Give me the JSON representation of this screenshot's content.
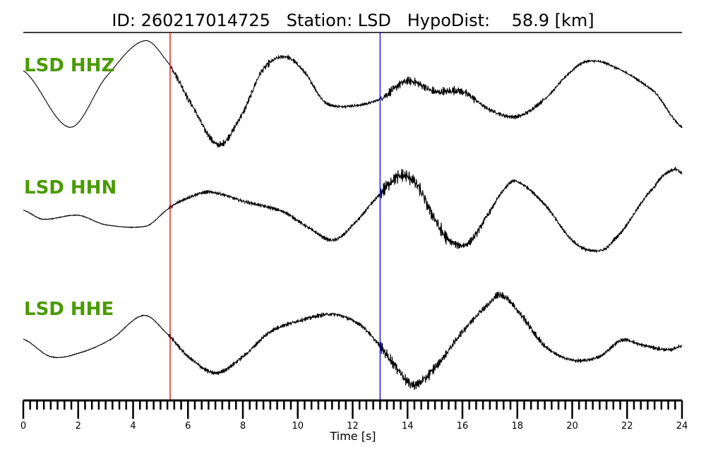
{
  "chart_data": {
    "type": "line",
    "title": "ID: 260217014725   Station: LSD   HypoDist:    58.9 [km]",
    "xlabel": "Time [s]",
    "xlim": [
      0,
      24
    ],
    "xticks": [
      "0",
      "2",
      "4",
      "6",
      "8",
      "10",
      "12",
      "14",
      "16",
      "18",
      "20",
      "22",
      "24"
    ],
    "minor_tick_step": 0.25,
    "grid": false,
    "label_color": "#4a9a00",
    "markers": [
      {
        "time": 5.35,
        "color": "#e00000"
      },
      {
        "time": 13.0,
        "color": "#0000ff"
      }
    ],
    "series": [
      {
        "name": "LSD HHZ",
        "points": [
          [
            0,
            0.46
          ],
          [
            1.7,
            -0.54
          ],
          [
            3,
            0.34
          ],
          [
            4.4,
            0.99
          ],
          [
            5.3,
            0.59
          ],
          [
            6,
            -0.04
          ],
          [
            7.1,
            -0.85
          ],
          [
            8,
            -0.29
          ],
          [
            8.7,
            0.46
          ],
          [
            9.5,
            0.71
          ],
          [
            10.2,
            0.46
          ],
          [
            11,
            -0.1
          ],
          [
            12,
            -0.16
          ],
          [
            13,
            -0.04
          ],
          [
            14,
            0.28
          ],
          [
            15,
            0.09
          ],
          [
            16,
            0.09
          ],
          [
            17,
            -0.23
          ],
          [
            18,
            -0.35
          ],
          [
            19,
            -0.04
          ],
          [
            20,
            0.46
          ],
          [
            20.6,
            0.63
          ],
          [
            21.5,
            0.53
          ],
          [
            23,
            0.09
          ],
          [
            24,
            -0.54
          ]
        ],
        "noise": [
          [
            0,
            5.35,
            0.005
          ],
          [
            5.35,
            9,
            0.09
          ],
          [
            9,
            11,
            0.06
          ],
          [
            11,
            13,
            0.04
          ],
          [
            13,
            16.5,
            0.12
          ],
          [
            16.5,
            19,
            0.06
          ],
          [
            19,
            24,
            0.035
          ]
        ]
      },
      {
        "name": "LSD HHN",
        "points": [
          [
            0,
            0.03
          ],
          [
            0.7,
            -0.13
          ],
          [
            2,
            -0.06
          ],
          [
            3,
            -0.23
          ],
          [
            4.5,
            -0.25
          ],
          [
            5.3,
            0.06
          ],
          [
            6,
            0.25
          ],
          [
            6.8,
            0.35
          ],
          [
            8,
            0.19
          ],
          [
            9.5,
            0
          ],
          [
            10.5,
            -0.31
          ],
          [
            11.3,
            -0.5
          ],
          [
            12,
            -0.23
          ],
          [
            13,
            0.31
          ],
          [
            13.7,
            0.63
          ],
          [
            14.3,
            0.5
          ],
          [
            15,
            -0.13
          ],
          [
            15.5,
            -0.5
          ],
          [
            16.2,
            -0.56
          ],
          [
            17,
            0
          ],
          [
            17.6,
            0.44
          ],
          [
            18,
            0.53
          ],
          [
            19,
            0.13
          ],
          [
            20,
            -0.5
          ],
          [
            20.8,
            -0.69
          ],
          [
            21.5,
            -0.5
          ],
          [
            23,
            0.44
          ],
          [
            23.7,
            0.75
          ],
          [
            24,
            0.69
          ]
        ],
        "noise": [
          [
            0,
            5.3,
            0.01
          ],
          [
            5.3,
            13,
            0.05
          ],
          [
            13,
            15.5,
            0.19
          ],
          [
            15.5,
            17,
            0.1
          ],
          [
            17,
            24,
            0.05
          ]
        ]
      },
      {
        "name": "LSD HHE",
        "points": [
          [
            0,
            0.06
          ],
          [
            1,
            -0.25
          ],
          [
            2,
            -0.19
          ],
          [
            3.2,
            0.06
          ],
          [
            4.4,
            0.48
          ],
          [
            5.3,
            0.13
          ],
          [
            6,
            -0.25
          ],
          [
            7,
            -0.54
          ],
          [
            8,
            -0.25
          ],
          [
            9,
            0.19
          ],
          [
            10,
            0.38
          ],
          [
            11.3,
            0.5
          ],
          [
            12.3,
            0.31
          ],
          [
            13,
            -0.06
          ],
          [
            13.6,
            -0.44
          ],
          [
            14.2,
            -0.75
          ],
          [
            15,
            -0.44
          ],
          [
            16,
            0.19
          ],
          [
            17,
            0.69
          ],
          [
            17.4,
            0.84
          ],
          [
            18,
            0.56
          ],
          [
            19,
            -0.06
          ],
          [
            20,
            -0.31
          ],
          [
            21,
            -0.25
          ],
          [
            21.8,
            0.04
          ],
          [
            22.5,
            -0.04
          ],
          [
            23.5,
            -0.13
          ],
          [
            24,
            -0.06
          ]
        ],
        "noise": [
          [
            0,
            5.3,
            0.01
          ],
          [
            5.3,
            13,
            0.06
          ],
          [
            13,
            15,
            0.15
          ],
          [
            15,
            19,
            0.1
          ],
          [
            19,
            24,
            0.05
          ]
        ]
      }
    ]
  }
}
